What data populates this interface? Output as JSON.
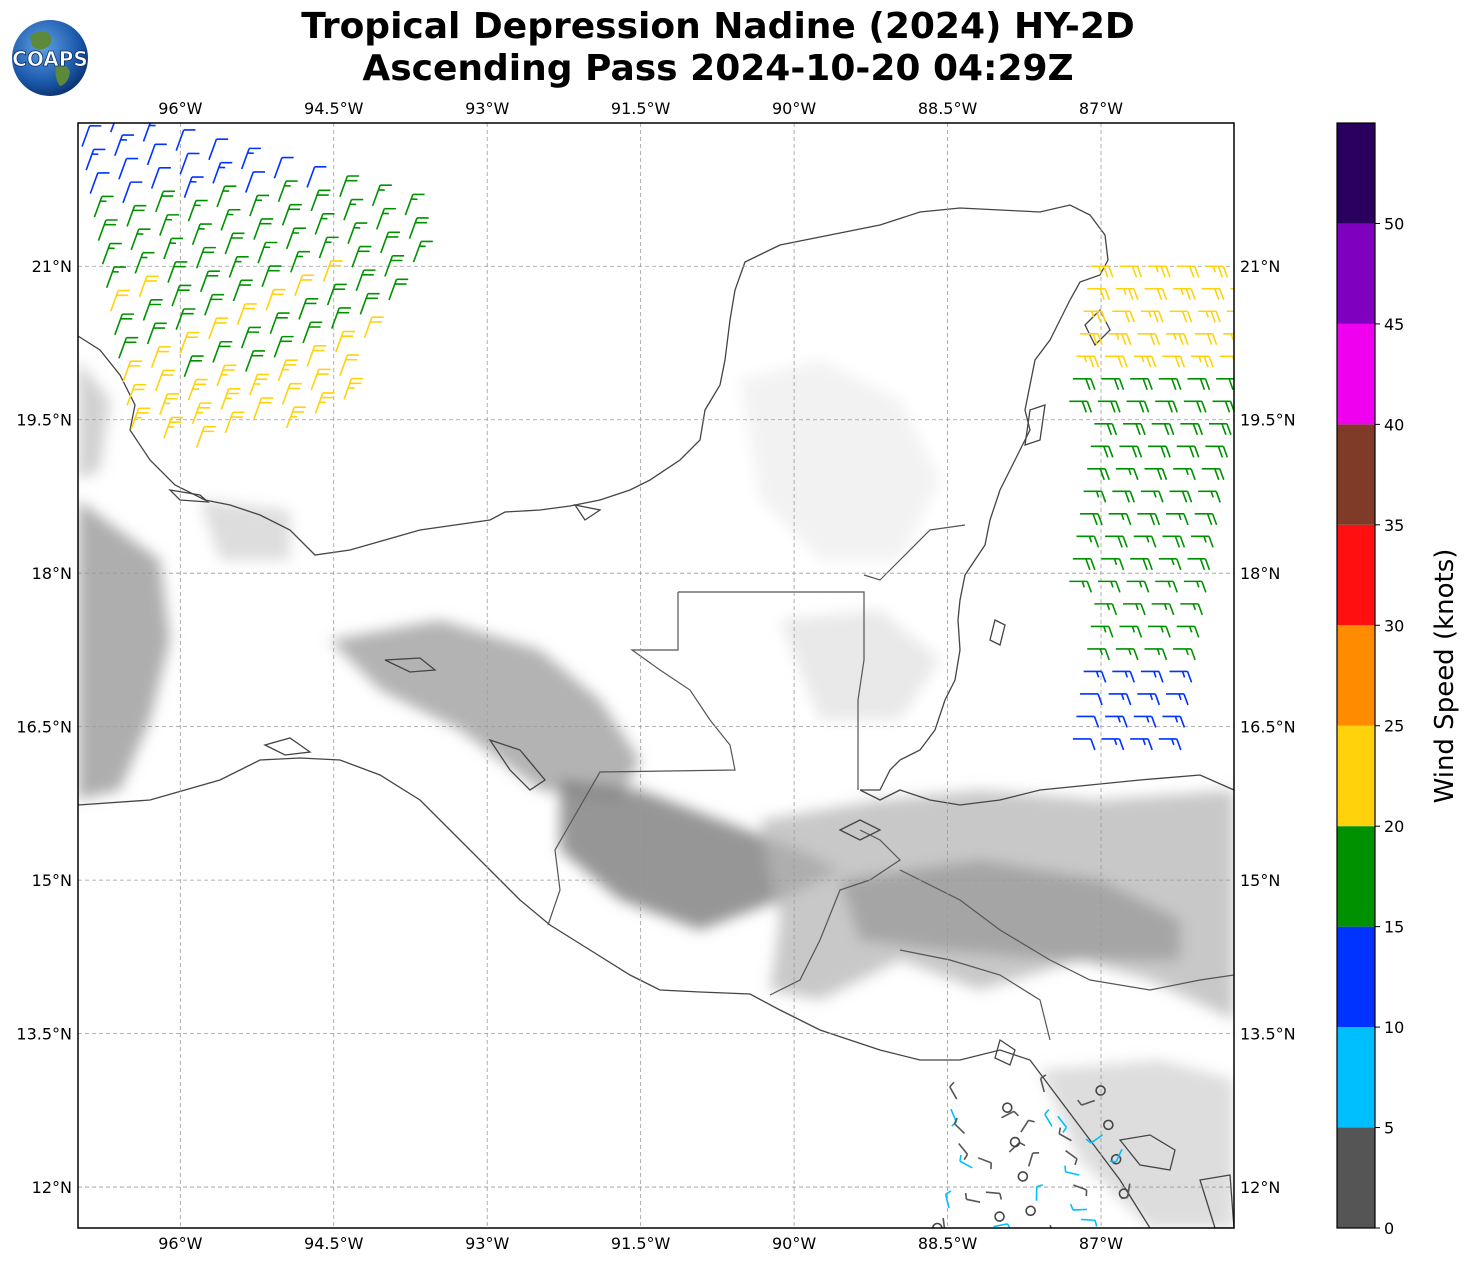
{
  "title": {
    "line1": "Tropical Depression Nadine (2024) HY-2D",
    "line2": "Ascending Pass 2024-10-20 04:29Z"
  },
  "logo": {
    "text": "COAPS",
    "icon": "coaps-globe-logo"
  },
  "map": {
    "lon_range": [
      -97.0,
      -85.7
    ],
    "lat_range": [
      11.6,
      22.4
    ],
    "lon_ticks": [
      {
        "value": -96.0,
        "label": "96°W"
      },
      {
        "value": -94.5,
        "label": "94.5°W"
      },
      {
        "value": -93.0,
        "label": "93°W"
      },
      {
        "value": -91.5,
        "label": "91.5°W"
      },
      {
        "value": -90.0,
        "label": "90°W"
      },
      {
        "value": -88.5,
        "label": "88.5°W"
      },
      {
        "value": -87.0,
        "label": "87°W"
      }
    ],
    "lat_ticks": [
      {
        "value": 12.0,
        "label": "12°N"
      },
      {
        "value": 13.5,
        "label": "13.5°N"
      },
      {
        "value": 15.0,
        "label": "15°N"
      },
      {
        "value": 16.5,
        "label": "16.5°N"
      },
      {
        "value": 18.0,
        "label": "18°N"
      },
      {
        "value": 19.5,
        "label": "19.5°N"
      },
      {
        "value": 21.0,
        "label": "21°N"
      }
    ],
    "gridlines": true,
    "background": "grayscale-topography"
  },
  "colorbar": {
    "label": "Wind Speed (knots)",
    "tick_labels": [
      "0",
      "5",
      "10",
      "15",
      "20",
      "25",
      "30",
      "35",
      "40",
      "45",
      "50"
    ],
    "bins": [
      {
        "min": 0,
        "max": 5,
        "color": "#555555"
      },
      {
        "min": 5,
        "max": 10,
        "color": "#00bfff"
      },
      {
        "min": 10,
        "max": 15,
        "color": "#0033ff"
      },
      {
        "min": 15,
        "max": 20,
        "color": "#009100"
      },
      {
        "min": 20,
        "max": 25,
        "color": "#ffd20b"
      },
      {
        "min": 25,
        "max": 30,
        "color": "#ff8c00"
      },
      {
        "min": 30,
        "max": 35,
        "color": "#ff0f0f"
      },
      {
        "min": 35,
        "max": 40,
        "color": "#7f3a28"
      },
      {
        "min": 40,
        "max": 45,
        "color": "#ef00ef"
      },
      {
        "min": 45,
        "max": 50,
        "color": "#7f00bf"
      },
      {
        "min": 50,
        "max": 55,
        "color": "#2a005f"
      }
    ]
  },
  "wind_swaths": [
    {
      "name": "",
      "lon_start": -97.0,
      "lon_end": -93.0,
      "lat_start": 22.4,
      "lat_end": 19.1,
      "speed_gradient": [
        12,
        17,
        19,
        23,
        27
      ],
      "direction_deg": 340
    },
    {
      "name": "",
      "lon_start": -87.6,
      "lon_end": -85.7,
      "lat_start": 21.0,
      "lat_end": 16.2,
      "speed_gradient": [
        22,
        18,
        17,
        16,
        13
      ],
      "direction_deg": 90
    }
  ],
  "calm_points_region": {
    "lon": [
      -88.6,
      -86.7
    ],
    "lat": [
      11.6,
      13.0
    ],
    "speed_range": [
      0,
      9
    ]
  }
}
